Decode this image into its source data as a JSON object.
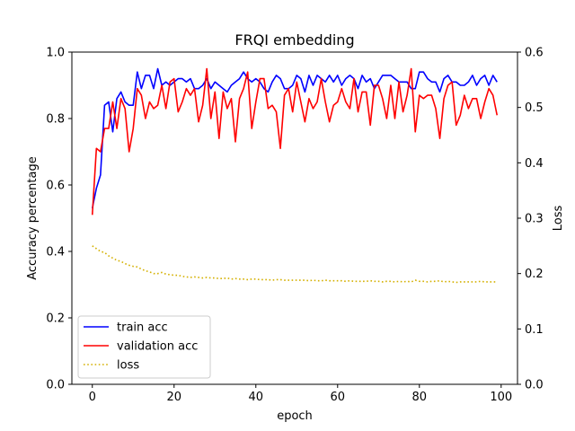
{
  "chart_data": {
    "type": "line",
    "title": "FRQI embedding",
    "xlabel": "epoch",
    "ylabel": "Accuracy percentage",
    "y2label": "Loss",
    "xlim": [
      -5,
      104
    ],
    "ylim": [
      0.0,
      1.0
    ],
    "y2lim": [
      0.0,
      0.6
    ],
    "x_ticks": [
      0,
      20,
      40,
      60,
      80,
      100
    ],
    "y_ticks": [
      0.0,
      0.2,
      0.4,
      0.6,
      0.8,
      1.0
    ],
    "y2_ticks": [
      0.0,
      0.1,
      0.2,
      0.3,
      0.4,
      0.5,
      0.6
    ],
    "grid": false,
    "legend_position": "lower-left",
    "series": [
      {
        "name": "train acc",
        "axis": "left",
        "color": "#0000ff",
        "style": "solid",
        "values": [
          0.53,
          0.59,
          0.63,
          0.84,
          0.85,
          0.76,
          0.86,
          0.88,
          0.85,
          0.84,
          0.84,
          0.94,
          0.89,
          0.93,
          0.93,
          0.89,
          0.95,
          0.9,
          0.91,
          0.9,
          0.91,
          0.92,
          0.92,
          0.91,
          0.92,
          0.89,
          0.89,
          0.9,
          0.92,
          0.89,
          0.91,
          0.9,
          0.89,
          0.88,
          0.9,
          0.91,
          0.92,
          0.94,
          0.92,
          0.91,
          0.92,
          0.91,
          0.89,
          0.88,
          0.91,
          0.93,
          0.92,
          0.89,
          0.89,
          0.9,
          0.93,
          0.92,
          0.88,
          0.93,
          0.9,
          0.93,
          0.92,
          0.91,
          0.93,
          0.91,
          0.93,
          0.9,
          0.92,
          0.93,
          0.92,
          0.89,
          0.93,
          0.91,
          0.92,
          0.89,
          0.91,
          0.93,
          0.93,
          0.93,
          0.92,
          0.91,
          0.91,
          0.91,
          0.89,
          0.89,
          0.94,
          0.94,
          0.92,
          0.91,
          0.91,
          0.88,
          0.92,
          0.93,
          0.91,
          0.91,
          0.9,
          0.9,
          0.91,
          0.93,
          0.9,
          0.92,
          0.93,
          0.9,
          0.93,
          0.91
        ]
      },
      {
        "name": "validation acc",
        "axis": "left",
        "color": "#ff0000",
        "style": "solid",
        "values": [
          0.51,
          0.71,
          0.7,
          0.77,
          0.77,
          0.85,
          0.77,
          0.86,
          0.83,
          0.7,
          0.77,
          0.89,
          0.87,
          0.8,
          0.85,
          0.83,
          0.84,
          0.9,
          0.83,
          0.91,
          0.92,
          0.82,
          0.85,
          0.89,
          0.87,
          0.89,
          0.79,
          0.84,
          0.95,
          0.8,
          0.88,
          0.74,
          0.88,
          0.83,
          0.86,
          0.73,
          0.86,
          0.89,
          0.94,
          0.77,
          0.85,
          0.92,
          0.92,
          0.83,
          0.84,
          0.82,
          0.71,
          0.87,
          0.89,
          0.82,
          0.91,
          0.85,
          0.79,
          0.86,
          0.83,
          0.85,
          0.92,
          0.85,
          0.79,
          0.84,
          0.85,
          0.89,
          0.85,
          0.83,
          0.92,
          0.82,
          0.88,
          0.88,
          0.78,
          0.9,
          0.9,
          0.86,
          0.8,
          0.9,
          0.8,
          0.91,
          0.82,
          0.87,
          0.95,
          0.76,
          0.87,
          0.86,
          0.87,
          0.87,
          0.83,
          0.74,
          0.86,
          0.9,
          0.91,
          0.78,
          0.81,
          0.87,
          0.83,
          0.86,
          0.86,
          0.8,
          0.85,
          0.89,
          0.87,
          0.81
        ]
      },
      {
        "name": "loss",
        "axis": "right",
        "color": "#d4b000",
        "style": "dotted",
        "values": [
          0.25,
          0.245,
          0.24,
          0.238,
          0.232,
          0.228,
          0.224,
          0.222,
          0.218,
          0.215,
          0.213,
          0.212,
          0.208,
          0.205,
          0.203,
          0.2,
          0.2,
          0.202,
          0.199,
          0.198,
          0.197,
          0.197,
          0.195,
          0.194,
          0.193,
          0.194,
          0.193,
          0.192,
          0.193,
          0.192,
          0.192,
          0.191,
          0.191,
          0.192,
          0.19,
          0.191,
          0.19,
          0.19,
          0.189,
          0.19,
          0.19,
          0.189,
          0.189,
          0.189,
          0.188,
          0.189,
          0.189,
          0.188,
          0.188,
          0.188,
          0.188,
          0.188,
          0.188,
          0.187,
          0.188,
          0.187,
          0.187,
          0.188,
          0.187,
          0.187,
          0.187,
          0.187,
          0.186,
          0.187,
          0.186,
          0.186,
          0.186,
          0.186,
          0.187,
          0.186,
          0.186,
          0.185,
          0.186,
          0.186,
          0.185,
          0.186,
          0.185,
          0.186,
          0.185,
          0.188,
          0.186,
          0.186,
          0.185,
          0.186,
          0.186,
          0.187,
          0.185,
          0.186,
          0.185,
          0.184,
          0.185,
          0.185,
          0.185,
          0.185,
          0.185,
          0.186,
          0.185,
          0.185,
          0.185,
          0.185
        ]
      }
    ]
  }
}
